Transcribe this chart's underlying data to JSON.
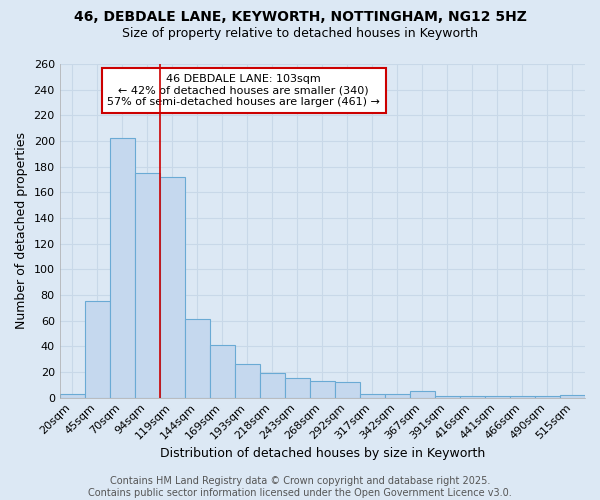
{
  "title": "46, DEBDALE LANE, KEYWORTH, NOTTINGHAM, NG12 5HZ",
  "subtitle": "Size of property relative to detached houses in Keyworth",
  "xlabel": "Distribution of detached houses by size in Keyworth",
  "ylabel": "Number of detached properties",
  "categories": [
    "20sqm",
    "45sqm",
    "70sqm",
    "94sqm",
    "119sqm",
    "144sqm",
    "169sqm",
    "193sqm",
    "218sqm",
    "243sqm",
    "268sqm",
    "292sqm",
    "317sqm",
    "342sqm",
    "367sqm",
    "391sqm",
    "416sqm",
    "441sqm",
    "466sqm",
    "490sqm",
    "515sqm"
  ],
  "values": [
    3,
    75,
    202,
    175,
    172,
    61,
    41,
    26,
    19,
    15,
    13,
    12,
    3,
    3,
    5,
    1,
    1,
    1,
    1,
    1,
    2
  ],
  "bar_color": "#c5d8ee",
  "bar_edge_color": "#6aaad4",
  "vline_x": 3.5,
  "vline_color": "#cc0000",
  "annotation_text": "46 DEBDALE LANE: 103sqm\n← 42% of detached houses are smaller (340)\n57% of semi-detached houses are larger (461) →",
  "annotation_box_color": "#ffffff",
  "annotation_box_edge": "#cc0000",
  "ylim": [
    0,
    260
  ],
  "yticks": [
    0,
    20,
    40,
    60,
    80,
    100,
    120,
    140,
    160,
    180,
    200,
    220,
    240,
    260
  ],
  "grid_color": "#c8d8e8",
  "background_color": "#dce8f4",
  "plot_bg_color": "#dce8f4",
  "footer_text": "Contains HM Land Registry data © Crown copyright and database right 2025.\nContains public sector information licensed under the Open Government Licence v3.0.",
  "title_fontsize": 10,
  "subtitle_fontsize": 9,
  "axis_label_fontsize": 9,
  "tick_fontsize": 8,
  "annotation_fontsize": 8,
  "footer_fontsize": 7
}
